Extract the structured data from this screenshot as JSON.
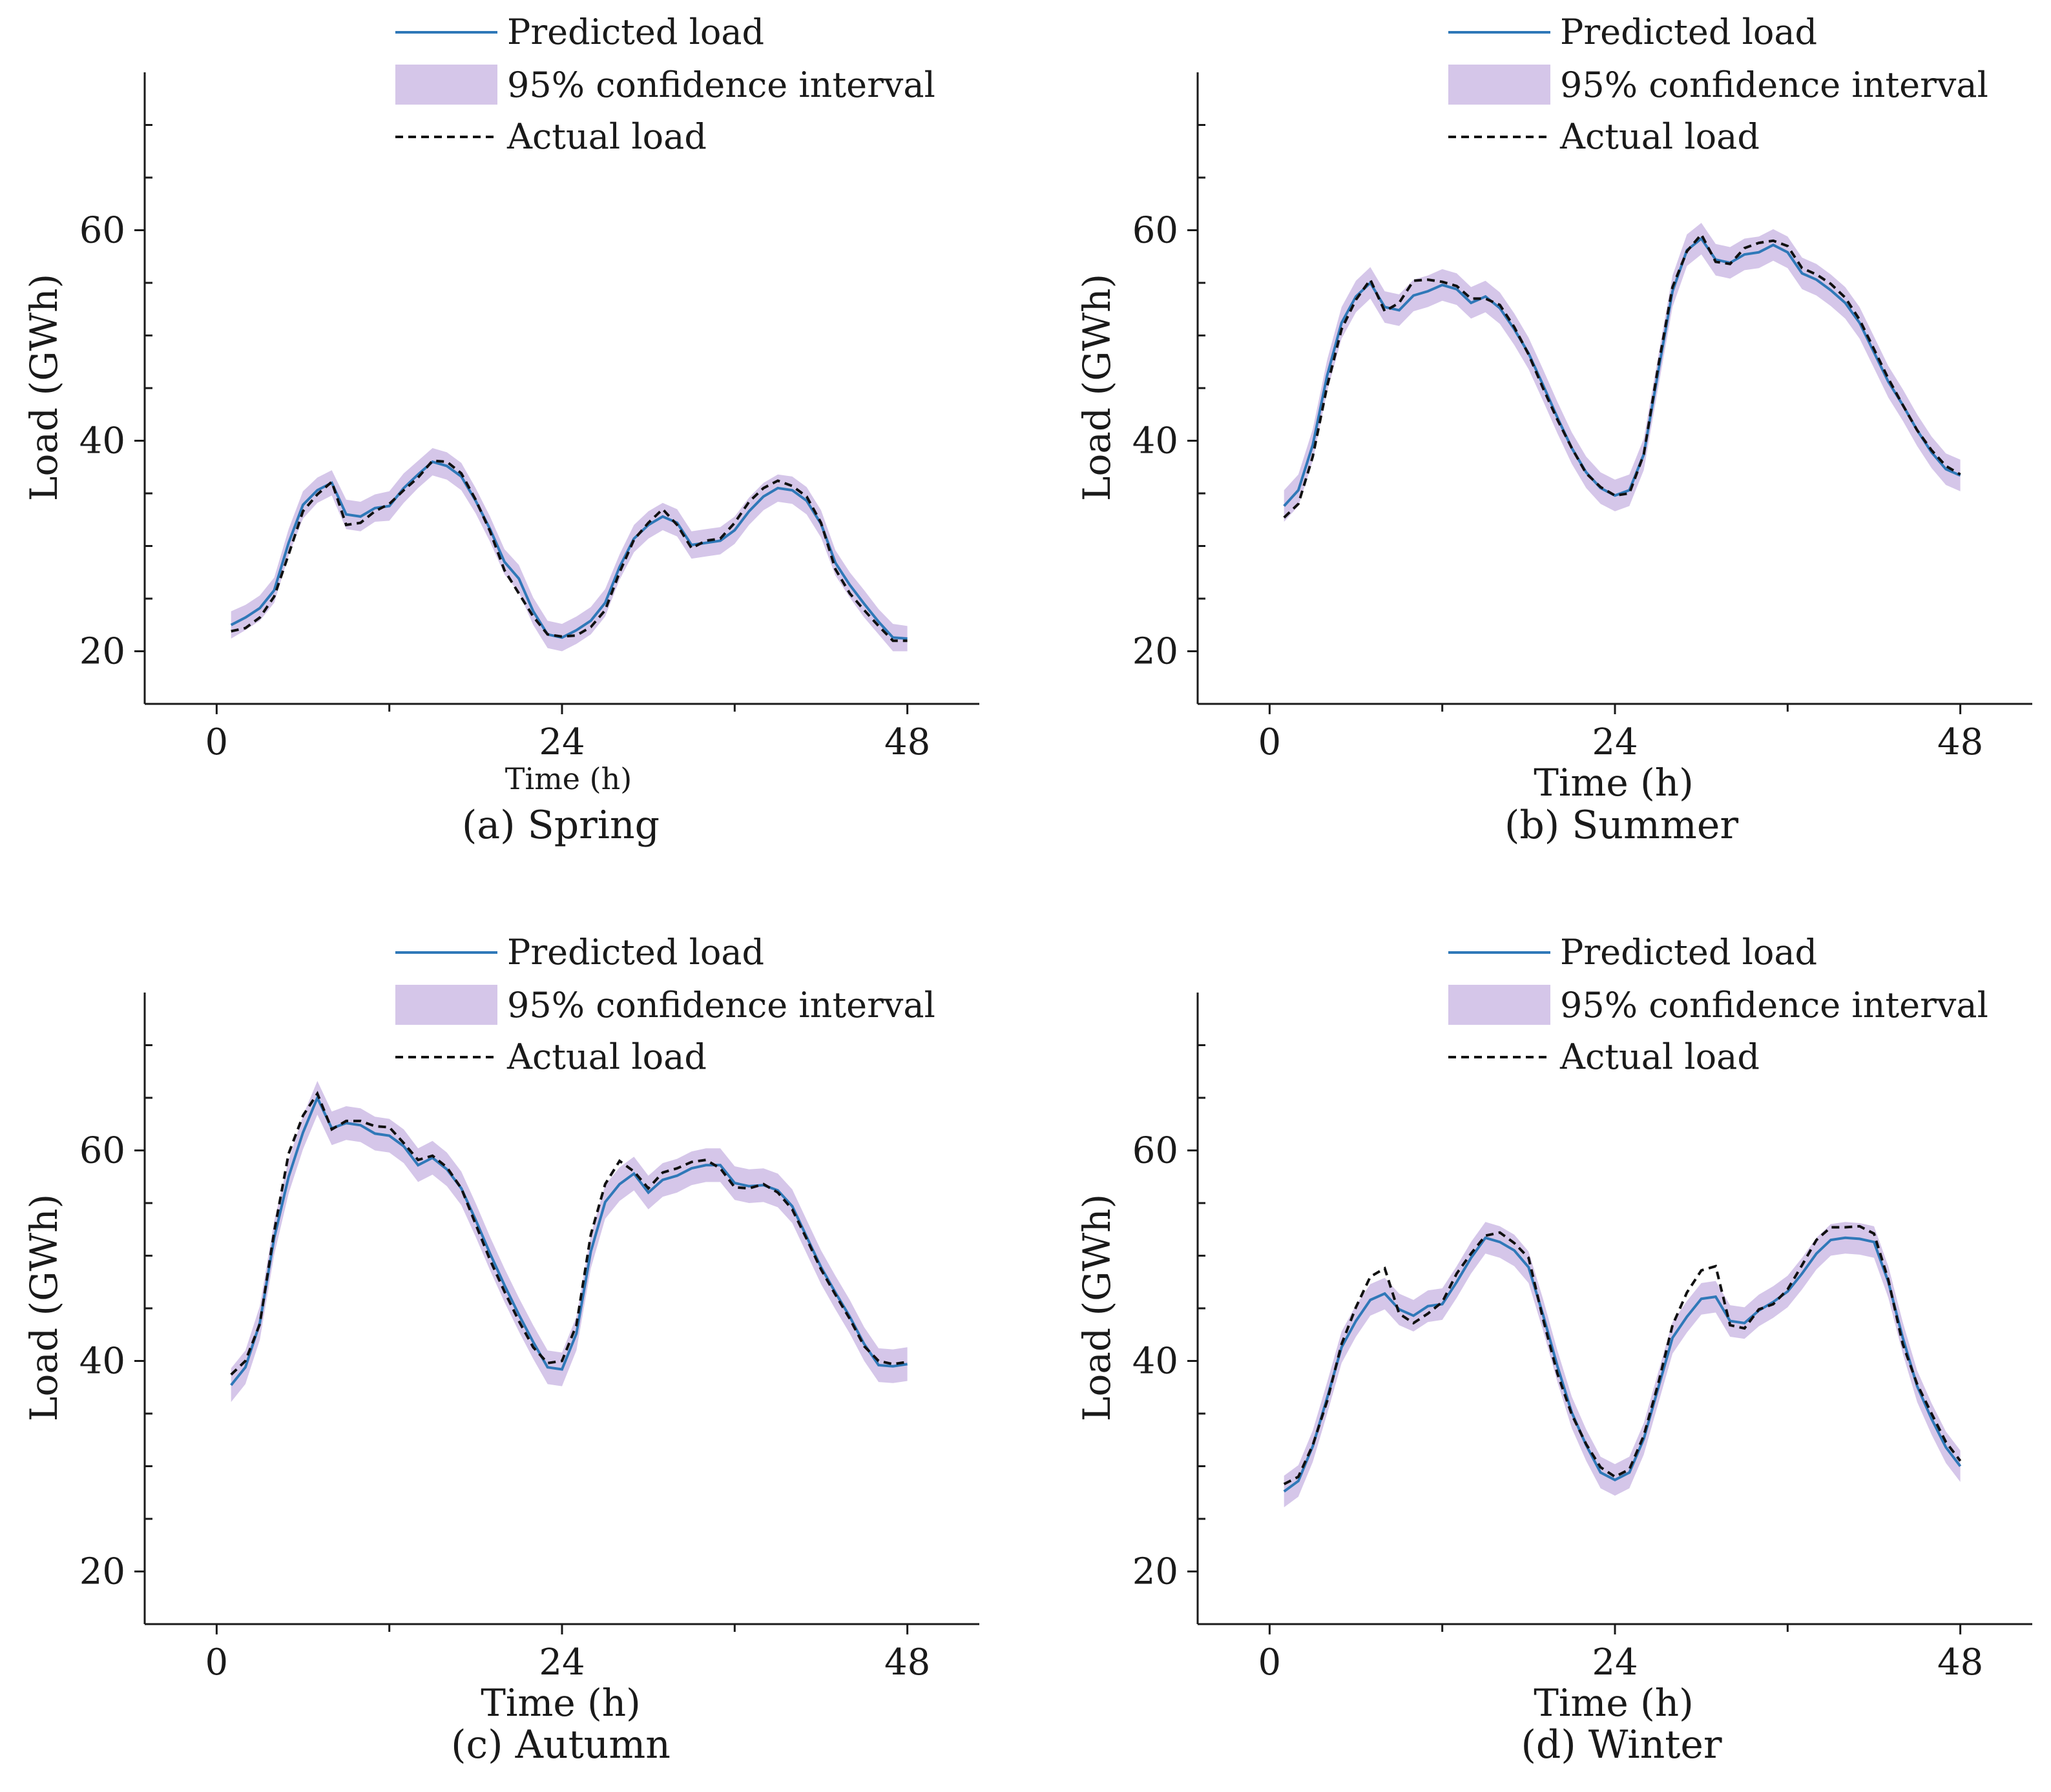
{
  "legend": {
    "predicted": "Predicted load",
    "ci": "95% confidence interval",
    "actual": "Actual load"
  },
  "colors": {
    "predicted": "#2f78b8",
    "ci": "#d3c3e8",
    "actual": "#111111"
  },
  "chart_data": [
    {
      "type": "line",
      "caption": "(a) Spring",
      "xlabel": "Time (h)",
      "ylabel": "Load (GWh)",
      "xlim": [
        -5,
        53
      ],
      "ylim": [
        15,
        75
      ],
      "xticks": [
        0,
        24,
        48
      ],
      "yticks": [
        20,
        40,
        60
      ],
      "x": [
        1,
        2,
        3,
        4,
        5,
        6,
        7,
        8,
        9,
        10,
        11,
        12,
        13,
        14,
        15,
        16,
        17,
        18,
        19,
        20,
        21,
        22,
        23,
        24,
        25,
        26,
        27,
        28,
        29,
        30,
        31,
        32,
        33,
        34,
        35,
        36,
        37,
        38,
        39,
        40,
        41,
        42,
        43,
        44,
        45,
        46,
        47,
        48
      ],
      "series": [
        {
          "name": "Predicted load",
          "values": [
            22.5,
            23.2,
            24.1,
            25.8,
            30.3,
            33.9,
            35.3,
            36.0,
            33.0,
            32.8,
            33.6,
            33.8,
            35.5,
            36.8,
            38.0,
            37.6,
            36.6,
            34.3,
            31.6,
            28.5,
            26.9,
            23.8,
            21.6,
            21.3,
            22.0,
            22.9,
            24.6,
            28.0,
            30.7,
            32.0,
            32.8,
            32.2,
            30.1,
            30.3,
            30.5,
            31.5,
            33.3,
            34.7,
            35.5,
            35.3,
            34.3,
            32.1,
            28.4,
            26.3,
            24.5,
            22.8,
            21.3,
            21.2
          ]
        },
        {
          "name": "Actual load",
          "values": [
            21.9,
            22.2,
            23.2,
            25.2,
            29.2,
            33.3,
            34.9,
            36.1,
            32.0,
            32.2,
            33.3,
            34.0,
            35.3,
            36.5,
            38.1,
            38.0,
            36.9,
            34.4,
            31.4,
            27.7,
            25.5,
            23.3,
            21.6,
            21.4,
            21.5,
            22.3,
            23.9,
            27.5,
            30.6,
            32.2,
            33.5,
            32.0,
            29.8,
            30.5,
            30.7,
            32.2,
            34.2,
            35.5,
            36.2,
            35.7,
            34.7,
            32.2,
            27.8,
            25.5,
            23.9,
            22.4,
            21.0,
            21.0
          ]
        },
        {
          "name": "95% confidence interval",
          "lower": [
            21.2,
            22.0,
            22.9,
            24.6,
            29.1,
            32.6,
            34.1,
            34.8,
            31.6,
            31.4,
            32.3,
            32.4,
            34.1,
            35.5,
            36.7,
            36.3,
            35.3,
            33.1,
            30.4,
            27.3,
            25.6,
            22.5,
            20.3,
            20.0,
            20.7,
            21.6,
            23.3,
            26.8,
            29.4,
            30.7,
            31.5,
            30.9,
            28.8,
            29.0,
            29.2,
            30.2,
            32.0,
            33.4,
            34.2,
            34.0,
            33.0,
            30.8,
            27.2,
            25.1,
            23.2,
            21.6,
            20.0,
            20.0
          ],
          "upper": [
            23.8,
            24.4,
            25.3,
            27.0,
            31.6,
            35.2,
            36.5,
            37.2,
            34.4,
            34.2,
            34.9,
            35.2,
            36.9,
            38.1,
            39.3,
            38.9,
            37.9,
            35.5,
            32.8,
            29.7,
            28.2,
            25.1,
            22.9,
            22.6,
            23.3,
            24.2,
            25.9,
            29.2,
            32.0,
            33.3,
            34.1,
            33.5,
            31.4,
            31.6,
            31.8,
            32.8,
            34.6,
            36.0,
            36.8,
            36.6,
            35.6,
            33.4,
            29.6,
            27.5,
            25.8,
            24.0,
            22.6,
            22.4
          ]
        }
      ]
    },
    {
      "type": "line",
      "caption": "(b) Summer",
      "xlabel": "Time (h)",
      "ylabel": "Load (GWh)",
      "xlim": [
        -5,
        53
      ],
      "ylim": [
        15,
        75
      ],
      "xticks": [
        0,
        24,
        48
      ],
      "yticks": [
        20,
        40,
        60
      ],
      "x": [
        1,
        2,
        3,
        4,
        5,
        6,
        7,
        8,
        9,
        10,
        11,
        12,
        13,
        14,
        15,
        16,
        17,
        18,
        19,
        20,
        21,
        22,
        23,
        24,
        25,
        26,
        27,
        28,
        29,
        30,
        31,
        32,
        33,
        34,
        35,
        36,
        37,
        38,
        39,
        40,
        41,
        42,
        43,
        44,
        45,
        46,
        47,
        48
      ],
      "series": [
        {
          "name": "Predicted load",
          "values": [
            33.8,
            35.3,
            39.6,
            46.2,
            51.2,
            53.7,
            55.0,
            52.7,
            52.4,
            53.8,
            54.2,
            54.8,
            54.4,
            53.1,
            53.7,
            52.6,
            50.6,
            48.3,
            45.3,
            42.2,
            39.3,
            37.0,
            35.5,
            34.8,
            35.3,
            38.7,
            46.5,
            54.2,
            58.1,
            59.2,
            57.2,
            56.9,
            57.7,
            57.9,
            58.6,
            57.9,
            55.9,
            55.3,
            54.3,
            53.1,
            51.2,
            48.4,
            45.6,
            43.4,
            41.0,
            38.9,
            37.3,
            36.7
          ]
        },
        {
          "name": "Actual load",
          "values": [
            32.7,
            34.0,
            38.5,
            45.2,
            50.6,
            53.4,
            55.3,
            52.3,
            53.1,
            55.2,
            55.3,
            55.1,
            54.7,
            53.5,
            53.5,
            52.9,
            50.8,
            48.2,
            45.0,
            42.0,
            39.3,
            36.9,
            35.6,
            34.8,
            35.0,
            38.7,
            47.0,
            54.6,
            58.0,
            59.6,
            57.0,
            56.8,
            58.3,
            58.8,
            59.0,
            58.5,
            56.4,
            55.8,
            54.9,
            53.6,
            51.5,
            48.7,
            45.9,
            43.4,
            41.0,
            39.1,
            37.6,
            36.8
          ]
        },
        {
          "name": "95% confidence interval",
          "lower": [
            32.3,
            33.8,
            38.1,
            44.7,
            49.7,
            52.2,
            53.5,
            51.2,
            50.9,
            52.3,
            52.7,
            53.3,
            52.9,
            51.6,
            52.2,
            51.1,
            49.1,
            46.8,
            43.8,
            40.7,
            37.8,
            35.5,
            34.0,
            33.3,
            33.8,
            37.2,
            45.0,
            52.7,
            56.6,
            57.7,
            55.7,
            55.4,
            56.2,
            56.4,
            57.1,
            56.4,
            54.4,
            53.8,
            52.8,
            51.6,
            49.7,
            46.9,
            44.1,
            41.9,
            39.5,
            37.4,
            35.8,
            35.2
          ],
          "upper": [
            35.3,
            36.8,
            41.1,
            47.7,
            52.7,
            55.2,
            56.5,
            54.2,
            53.9,
            55.3,
            55.7,
            56.3,
            55.9,
            54.6,
            55.2,
            54.1,
            52.1,
            49.8,
            46.8,
            43.7,
            40.8,
            38.5,
            37.0,
            36.3,
            36.8,
            40.2,
            48.0,
            55.7,
            59.6,
            60.7,
            58.7,
            58.4,
            59.2,
            59.4,
            60.1,
            59.4,
            57.4,
            56.8,
            55.8,
            54.6,
            52.7,
            49.9,
            47.1,
            44.9,
            42.5,
            40.4,
            38.8,
            38.2
          ]
        }
      ]
    },
    {
      "type": "line",
      "caption": "(c) Autumn",
      "xlabel": "Time (h)",
      "ylabel": "Load (GWh)",
      "xlim": [
        -5,
        53
      ],
      "ylim": [
        15,
        75
      ],
      "xticks": [
        0,
        24,
        48
      ],
      "yticks": [
        20,
        40,
        60
      ],
      "x": [
        1,
        2,
        3,
        4,
        5,
        6,
        7,
        8,
        9,
        10,
        11,
        12,
        13,
        14,
        15,
        16,
        17,
        18,
        19,
        20,
        21,
        22,
        23,
        24,
        25,
        26,
        27,
        28,
        29,
        30,
        31,
        32,
        33,
        34,
        35,
        36,
        37,
        38,
        39,
        40,
        41,
        42,
        43,
        44,
        45,
        46,
        47,
        48
      ],
      "series": [
        {
          "name": "Predicted load",
          "values": [
            37.7,
            39.4,
            43.6,
            51.7,
            57.5,
            61.7,
            65.0,
            62.1,
            62.6,
            62.4,
            61.6,
            61.4,
            60.4,
            58.6,
            59.3,
            58.2,
            56.4,
            53.4,
            50.2,
            47.2,
            44.4,
            41.8,
            39.4,
            39.2,
            42.6,
            50.4,
            55.1,
            56.8,
            57.8,
            56.0,
            57.2,
            57.6,
            58.3,
            58.6,
            58.6,
            56.9,
            56.6,
            56.7,
            56.2,
            54.7,
            51.8,
            48.9,
            46.5,
            44.2,
            41.6,
            39.6,
            39.5,
            39.7
          ]
        },
        {
          "name": "Actual load",
          "values": [
            38.7,
            40.0,
            43.5,
            52.3,
            59.7,
            63.3,
            65.4,
            62.0,
            62.8,
            62.8,
            62.3,
            62.2,
            60.7,
            59.1,
            59.5,
            58.4,
            56.4,
            53.0,
            49.6,
            46.6,
            43.8,
            41.3,
            39.8,
            40.0,
            43.4,
            52.0,
            56.8,
            59.0,
            58.0,
            56.4,
            57.9,
            58.3,
            58.9,
            59.1,
            58.3,
            56.5,
            56.4,
            56.8,
            56.0,
            54.4,
            51.6,
            48.7,
            46.3,
            44.0,
            41.4,
            40.0,
            39.7,
            39.9
          ]
        },
        {
          "name": "95% confidence interval",
          "lower": [
            36.1,
            37.8,
            42.0,
            50.1,
            55.9,
            60.1,
            63.4,
            60.5,
            61.0,
            60.8,
            60.0,
            59.8,
            58.8,
            57.0,
            57.7,
            56.6,
            54.8,
            51.8,
            48.6,
            45.6,
            42.8,
            40.2,
            37.8,
            37.6,
            41.0,
            48.8,
            53.5,
            55.2,
            56.2,
            54.4,
            55.6,
            56.0,
            56.7,
            57.0,
            57.0,
            55.3,
            55.0,
            55.1,
            54.6,
            53.1,
            50.2,
            47.3,
            44.9,
            42.6,
            40.0,
            38.0,
            37.9,
            38.1
          ],
          "upper": [
            39.3,
            41.0,
            45.2,
            53.3,
            59.1,
            63.3,
            66.6,
            63.7,
            64.2,
            64.0,
            63.2,
            63.0,
            62.0,
            60.2,
            60.9,
            59.8,
            58.0,
            55.0,
            51.8,
            48.8,
            46.0,
            43.4,
            41.0,
            40.8,
            44.2,
            52.0,
            56.7,
            58.4,
            59.4,
            57.6,
            58.8,
            59.2,
            59.9,
            60.2,
            60.2,
            58.5,
            58.2,
            58.3,
            57.8,
            56.3,
            53.4,
            50.5,
            48.1,
            45.8,
            43.2,
            41.2,
            41.1,
            41.3
          ]
        }
      ]
    },
    {
      "type": "line",
      "caption": "(d) Winter",
      "xlabel": "Time (h)",
      "ylabel": "Load (GWh)",
      "xlim": [
        -5,
        53
      ],
      "ylim": [
        15,
        75
      ],
      "xticks": [
        0,
        24,
        48
      ],
      "yticks": [
        20,
        40,
        60
      ],
      "x": [
        1,
        2,
        3,
        4,
        5,
        6,
        7,
        8,
        9,
        10,
        11,
        12,
        13,
        14,
        15,
        16,
        17,
        18,
        19,
        20,
        21,
        22,
        23,
        24,
        25,
        26,
        27,
        28,
        29,
        30,
        31,
        32,
        33,
        34,
        35,
        36,
        37,
        38,
        39,
        40,
        41,
        42,
        43,
        44,
        45,
        46,
        47,
        48
      ],
      "series": [
        {
          "name": "Predicted load",
          "values": [
            27.6,
            28.6,
            31.9,
            36.5,
            41.3,
            43.8,
            45.8,
            46.4,
            44.9,
            44.3,
            45.2,
            45.4,
            47.5,
            49.8,
            51.7,
            51.3,
            50.5,
            48.9,
            44.4,
            39.5,
            35.1,
            32.0,
            29.4,
            28.7,
            29.4,
            32.6,
            37.4,
            42.2,
            44.2,
            45.9,
            46.1,
            43.8,
            43.6,
            44.8,
            45.6,
            46.6,
            48.3,
            50.2,
            51.5,
            51.7,
            51.6,
            51.3,
            47.5,
            42.2,
            37.6,
            34.5,
            31.8,
            30.0
          ]
        },
        {
          "name": "Actual load",
          "values": [
            28.3,
            29.0,
            32.0,
            36.2,
            41.6,
            45.1,
            48.0,
            48.8,
            44.5,
            43.6,
            44.5,
            45.6,
            48.3,
            50.2,
            51.9,
            52.2,
            51.2,
            49.8,
            44.0,
            38.8,
            34.9,
            32.1,
            29.9,
            29.0,
            29.7,
            32.9,
            37.8,
            43.4,
            46.5,
            48.6,
            49.0,
            43.4,
            43.1,
            44.9,
            45.4,
            46.8,
            49.1,
            51.5,
            52.7,
            52.7,
            52.8,
            52.1,
            47.7,
            41.6,
            37.8,
            35.0,
            32.3,
            30.5
          ]
        },
        {
          "name": "95% confidence interval",
          "lower": [
            26.1,
            27.1,
            30.4,
            35.0,
            39.8,
            42.3,
            44.3,
            44.9,
            43.4,
            42.8,
            43.7,
            43.9,
            46.0,
            48.3,
            50.2,
            49.8,
            49.0,
            47.4,
            42.9,
            38.0,
            33.6,
            30.5,
            27.9,
            27.2,
            27.9,
            31.1,
            35.9,
            40.7,
            42.7,
            44.4,
            44.6,
            42.3,
            42.1,
            43.3,
            44.1,
            45.1,
            46.8,
            48.7,
            50.0,
            50.2,
            50.1,
            49.8,
            46.0,
            40.7,
            36.1,
            33.0,
            30.3,
            28.5
          ],
          "upper": [
            29.1,
            30.1,
            33.4,
            38.0,
            42.8,
            45.3,
            47.3,
            47.9,
            46.4,
            45.8,
            46.7,
            46.9,
            49.0,
            51.3,
            53.2,
            52.8,
            52.0,
            50.4,
            45.9,
            41.0,
            36.6,
            33.5,
            30.9,
            30.2,
            30.9,
            34.1,
            38.9,
            43.7,
            45.7,
            47.4,
            47.6,
            45.3,
            45.1,
            46.3,
            47.1,
            48.1,
            49.8,
            51.7,
            53.0,
            53.2,
            53.1,
            52.8,
            49.0,
            43.7,
            39.1,
            36.0,
            33.3,
            31.5
          ]
        }
      ]
    }
  ]
}
